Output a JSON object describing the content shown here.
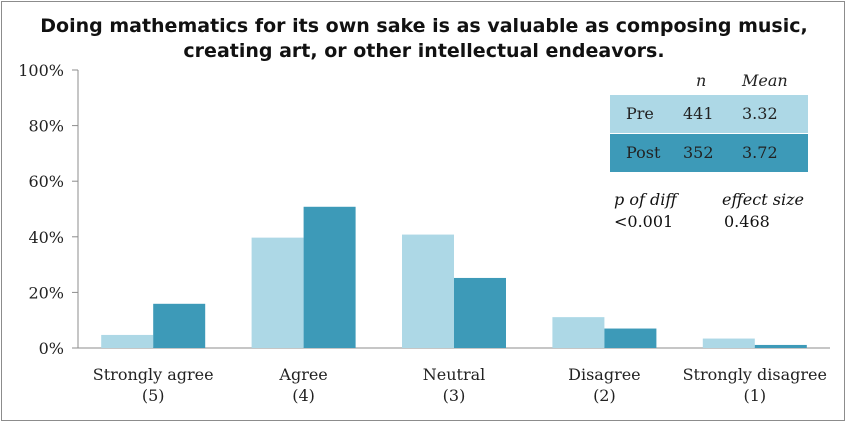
{
  "chart_data": {
    "type": "bar",
    "title": "Doing mathematics for its own sake is as valuable as composing music,\ncreating art, or other intellectual endeavors.",
    "categories": [
      "Strongly agree\n(5)",
      "Agree\n(4)",
      "Neutral\n(3)",
      "Disagree\n(2)",
      "Strongly disagree\n(1)"
    ],
    "series": [
      {
        "name": "Pre",
        "color": "#add8e6",
        "values": [
          4.7,
          39.7,
          40.8,
          11.1,
          3.4
        ]
      },
      {
        "name": "Post",
        "color": "#3d9ab8",
        "values": [
          15.9,
          50.8,
          25.2,
          7.0,
          1.1
        ]
      }
    ],
    "ylim": [
      0,
      100
    ],
    "yticks": [
      "0%",
      "20%",
      "40%",
      "60%",
      "80%",
      "100%"
    ],
    "tick_values": [
      0,
      20,
      40,
      60,
      80,
      100
    ],
    "grid": false,
    "xlabel": "",
    "ylabel": ""
  },
  "stats": {
    "header_n": "n",
    "header_mean": "Mean",
    "rows": [
      {
        "label": "Pre",
        "n": "441",
        "mean": "3.32"
      },
      {
        "label": "Post",
        "n": "352",
        "mean": "3.72"
      }
    ],
    "p_label": "p of diff",
    "p_value": "<0.001",
    "effect_label": "effect size",
    "effect_value": "0.468"
  }
}
